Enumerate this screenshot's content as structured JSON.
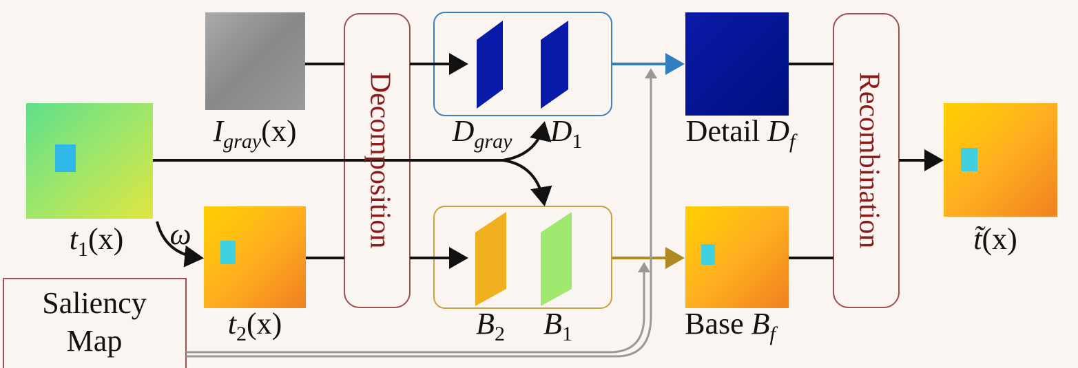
{
  "decomposition": "Decomposition",
  "recombination": "Recombination",
  "saliency": [
    "Saliency",
    "Map"
  ],
  "omega": "ω",
  "labels": {
    "i_gray": {
      "symbol": "I",
      "sub": "gray",
      "arg": "(x)"
    },
    "t1": {
      "symbol": "t",
      "sub": "1",
      "arg": "(x)"
    },
    "t2": {
      "symbol": "t",
      "sub": "2",
      "arg": "(x)"
    },
    "d_gray": {
      "symbol": "D",
      "sub": "gray"
    },
    "d1": {
      "symbol": "D",
      "sub": "1"
    },
    "b2": {
      "symbol": "B",
      "sub": "2"
    },
    "b1": {
      "symbol": "B",
      "sub": "1"
    },
    "detail": {
      "word": "Detail",
      "symbol": "D",
      "sub": "f"
    },
    "base": {
      "word": "Base",
      "symbol": "B",
      "sub": "f"
    },
    "output": {
      "symbol": "t̃",
      "arg": "(x)"
    }
  }
}
